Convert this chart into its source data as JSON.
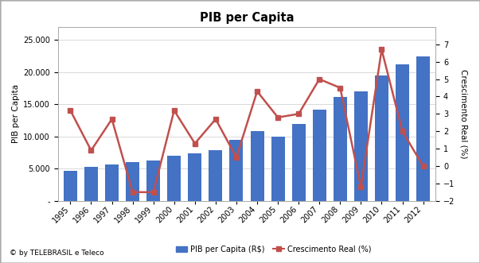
{
  "title": "PIB per Capita",
  "years": [
    1995,
    1996,
    1997,
    1998,
    1999,
    2000,
    2001,
    2002,
    2003,
    2004,
    2005,
    2006,
    2007,
    2008,
    2009,
    2010,
    2011,
    2012
  ],
  "pib": [
    4700,
    5300,
    5700,
    6000,
    6300,
    7000,
    7400,
    7900,
    9500,
    10800,
    10000,
    12000,
    14200,
    16100,
    17000,
    19500,
    21200,
    22400
  ],
  "crescimento_vals": [
    3.2,
    0.9,
    2.7,
    -1.5,
    -1.5,
    3.2,
    1.3,
    2.7,
    0.5,
    4.3,
    2.8,
    3.0,
    5.0,
    4.5,
    -1.2,
    6.7,
    2.0,
    0.0
  ],
  "bar_color": "#4472C4",
  "line_color": "#C0504D",
  "ylabel_left": "PIB per Capita",
  "ylabel_right": "Crescimento Real (%)",
  "ylim_left": [
    0,
    27000
  ],
  "ylim_right": [
    -2,
    8
  ],
  "yticks_left": [
    0,
    5000,
    10000,
    15000,
    20000,
    25000
  ],
  "yticks_right": [
    -2,
    -1,
    0,
    1,
    2,
    3,
    4,
    5,
    6,
    7
  ],
  "legend_bar": "PIB per Capita (R$)",
  "legend_line": "Crescimento Real (%)",
  "footer": "© by TELEBRASIL e Teleco",
  "background_color": "#FFFFFF",
  "border_color": "#AAAAAA",
  "grid_color": "#D9D9D9"
}
